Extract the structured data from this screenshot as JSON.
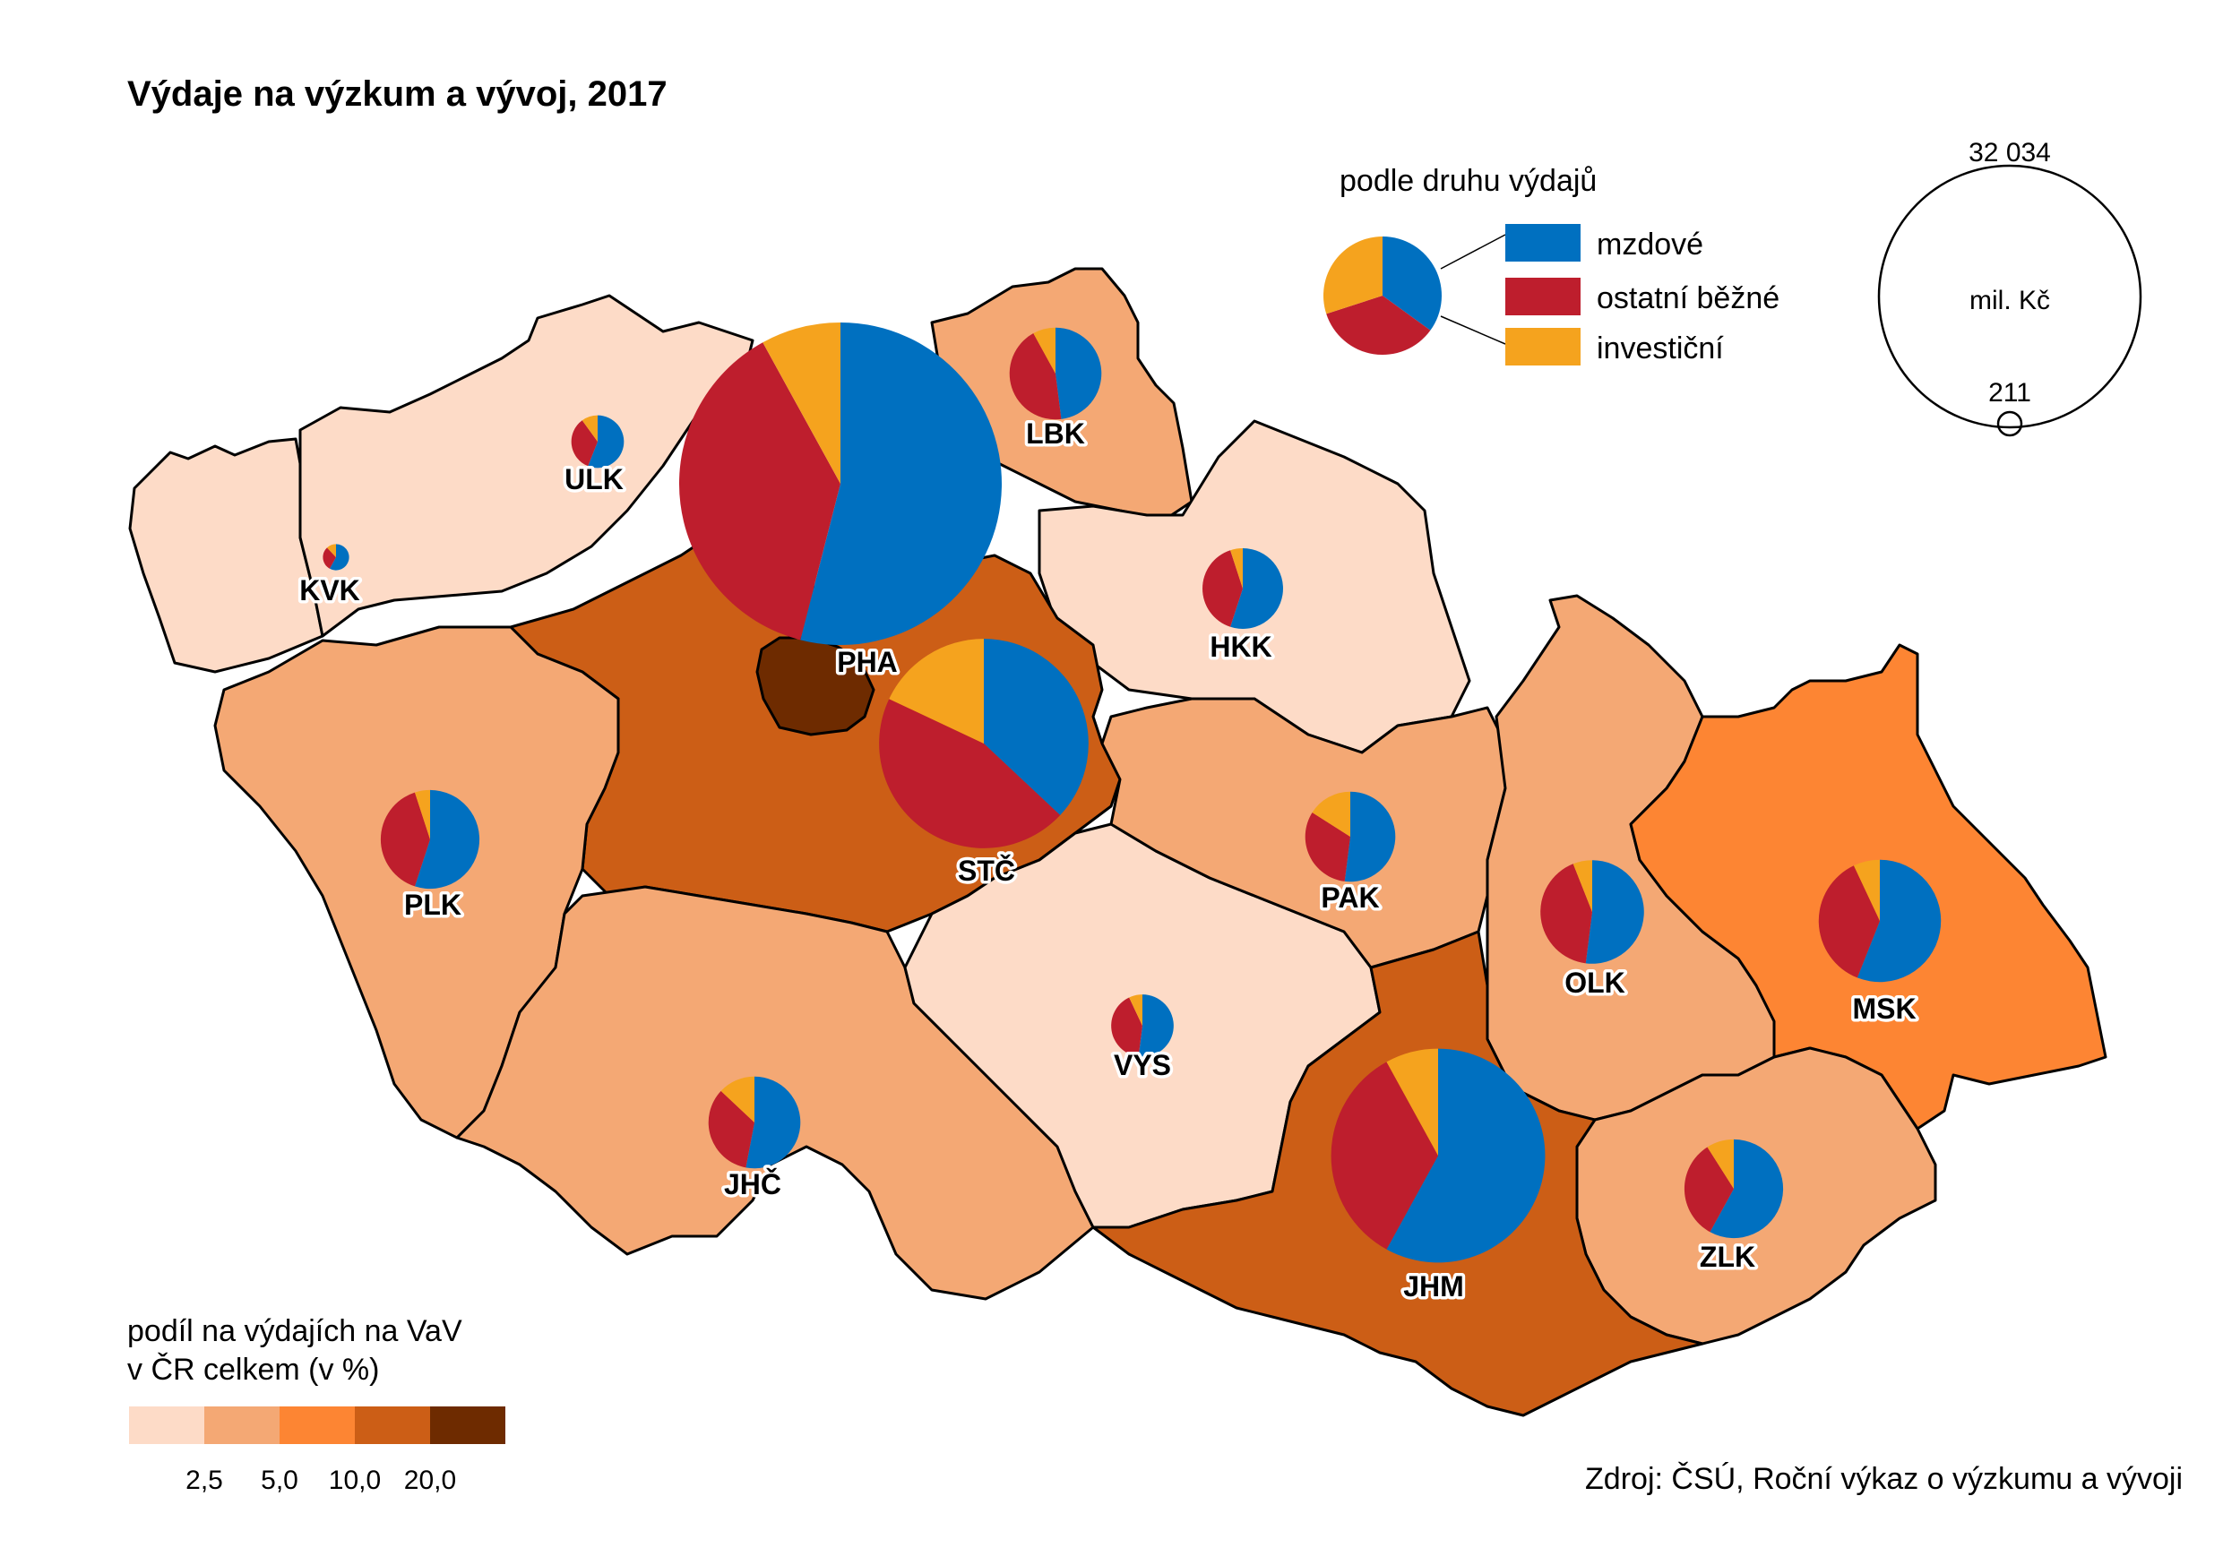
{
  "title": "Výdaje na výzkum a vývoj, 2017",
  "source": "Zdroj: ČSÚ, Roční výkaz o výzkumu a vývoji",
  "colors": {
    "mzdove": "#0070C0",
    "ostatni": "#BE1E2D",
    "investicni": "#F5A31E",
    "class1": "#FDDBC7",
    "class2": "#F4A874",
    "class3": "#FD8533",
    "class4": "#CC5E16",
    "class5": "#6E2B00"
  },
  "pie_legend": {
    "title": "podle druhu výdajů",
    "items": [
      "mzdové",
      "ostatní běžné",
      "investiční"
    ]
  },
  "size_legend": {
    "max_label": "32 034",
    "min_label": "211",
    "unit": "mil. Kč"
  },
  "choropleth_legend": {
    "title_line1": "podíl na výdajích na VaV",
    "title_line2": "v ČR celkem (v %)",
    "breaks": [
      "2,5",
      "5,0",
      "10,0",
      "20,0"
    ]
  },
  "chart_data": {
    "type": "map",
    "unit": "mil. Kč",
    "categories": [
      "mzdové",
      "ostatní běžné",
      "investiční"
    ],
    "regions": [
      {
        "code": "PHA",
        "total": 32034,
        "class": 5,
        "shares": [
          0.54,
          0.38,
          0.08
        ]
      },
      {
        "code": "STČ",
        "total": 13500,
        "class": 4,
        "shares": [
          0.37,
          0.45,
          0.18
        ]
      },
      {
        "code": "JHM",
        "total": 14100,
        "class": 4,
        "shares": [
          0.58,
          0.34,
          0.08
        ]
      },
      {
        "code": "MSK",
        "total": 4600,
        "class": 3,
        "shares": [
          0.56,
          0.37,
          0.07
        ]
      },
      {
        "code": "PLK",
        "total": 3000,
        "class": 2,
        "shares": [
          0.55,
          0.4,
          0.05
        ]
      },
      {
        "code": "JHČ",
        "total": 2600,
        "class": 2,
        "shares": [
          0.53,
          0.34,
          0.13
        ]
      },
      {
        "code": "OLK",
        "total": 3300,
        "class": 2,
        "shares": [
          0.52,
          0.42,
          0.06
        ]
      },
      {
        "code": "ZLK",
        "total": 3000,
        "class": 2,
        "shares": [
          0.58,
          0.33,
          0.09
        ]
      },
      {
        "code": "PAK",
        "total": 2500,
        "class": 2,
        "shares": [
          0.52,
          0.32,
          0.16
        ]
      },
      {
        "code": "LBK",
        "total": 2600,
        "class": 2,
        "shares": [
          0.48,
          0.44,
          0.08
        ]
      },
      {
        "code": "HKK",
        "total": 2000,
        "class": 1,
        "shares": [
          0.55,
          0.4,
          0.05
        ]
      },
      {
        "code": "VYS",
        "total": 1200,
        "class": 1,
        "shares": [
          0.52,
          0.41,
          0.07
        ]
      },
      {
        "code": "ULK",
        "total": 850,
        "class": 1,
        "shares": [
          0.56,
          0.34,
          0.1
        ]
      },
      {
        "code": "KVK",
        "total": 211,
        "class": 1,
        "shares": [
          0.58,
          0.3,
          0.12
        ]
      }
    ]
  }
}
